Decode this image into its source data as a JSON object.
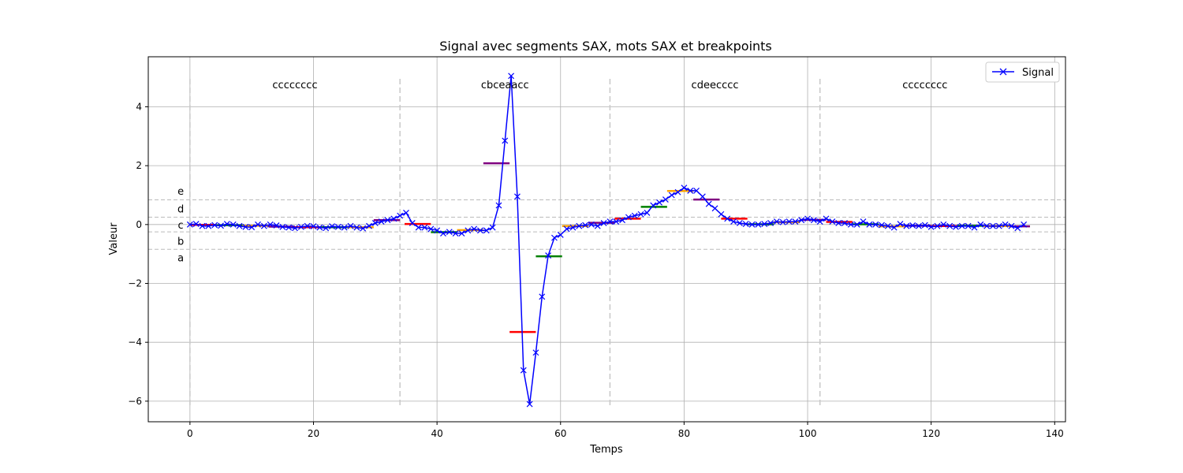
{
  "chart_data": {
    "type": "line",
    "title": "Signal avec segments SAX, mots SAX et breakpoints",
    "xlabel": "Temps",
    "ylabel": "Valeur",
    "xlim": [
      -6.75,
      141.75
    ],
    "ylim": [
      -6.7,
      5.7
    ],
    "xticks": [
      0,
      20,
      40,
      60,
      80,
      100,
      120,
      140
    ],
    "yticks": [
      -6,
      -4,
      -2,
      0,
      2,
      4
    ],
    "grid": true,
    "legend": {
      "position": "top-right",
      "entries": [
        {
          "name": "Signal",
          "color": "#0000ff",
          "marker": "x"
        }
      ]
    },
    "series": [
      {
        "name": "Signal",
        "color": "#0000ff",
        "x": [
          0,
          1,
          2,
          3,
          4,
          5,
          6,
          7,
          8,
          9,
          10,
          11,
          12,
          13,
          14,
          15,
          16,
          17,
          18,
          19,
          20,
          21,
          22,
          23,
          24,
          25,
          26,
          27,
          28,
          29,
          30,
          31,
          32,
          33,
          34,
          35,
          36,
          37,
          38,
          39,
          40,
          41,
          42,
          43,
          44,
          45,
          46,
          47,
          48,
          49,
          50,
          51,
          52,
          53,
          54,
          55,
          56,
          57,
          58,
          59,
          60,
          61,
          62,
          63,
          64,
          65,
          66,
          67,
          68,
          69,
          70,
          71,
          72,
          73,
          74,
          75,
          76,
          77,
          78,
          79,
          80,
          81,
          82,
          83,
          84,
          85,
          86,
          87,
          88,
          89,
          90,
          91,
          92,
          93,
          94,
          95,
          96,
          97,
          98,
          99,
          100,
          101,
          102,
          103,
          104,
          105,
          106,
          107,
          108,
          109,
          110,
          111,
          112,
          113,
          114,
          115,
          116,
          117,
          118,
          119,
          120,
          121,
          122,
          123,
          124,
          125,
          126,
          127,
          128,
          129,
          130,
          131,
          132,
          133,
          134,
          135
        ],
        "y": [
          0.0,
          0.02,
          -0.05,
          -0.05,
          -0.02,
          -0.04,
          0.02,
          0.0,
          -0.05,
          -0.08,
          -0.09,
          0.0,
          -0.05,
          0.0,
          -0.03,
          -0.08,
          -0.1,
          -0.12,
          -0.08,
          -0.05,
          -0.06,
          -0.1,
          -0.12,
          -0.06,
          -0.08,
          -0.1,
          -0.05,
          -0.1,
          -0.13,
          -0.05,
          0.05,
          0.1,
          0.15,
          0.2,
          0.3,
          0.4,
          0.05,
          -0.1,
          -0.1,
          -0.15,
          -0.2,
          -0.3,
          -0.25,
          -0.3,
          -0.3,
          -0.2,
          -0.15,
          -0.2,
          -0.2,
          -0.1,
          0.65,
          2.85,
          5.05,
          0.95,
          -4.95,
          -6.1,
          -4.35,
          -2.45,
          -1.05,
          -0.45,
          -0.35,
          -0.15,
          -0.1,
          -0.05,
          -0.02,
          0.0,
          -0.05,
          0.05,
          0.1,
          0.1,
          0.15,
          0.25,
          0.3,
          0.35,
          0.4,
          0.65,
          0.75,
          0.85,
          1.0,
          1.1,
          1.25,
          1.15,
          1.15,
          0.95,
          0.7,
          0.55,
          0.35,
          0.2,
          0.1,
          0.05,
          0.02,
          0.0,
          0.0,
          0.02,
          0.05,
          0.1,
          0.08,
          0.1,
          0.1,
          0.15,
          0.2,
          0.15,
          0.1,
          0.2,
          0.1,
          0.05,
          0.05,
          0.0,
          0.0,
          0.1,
          0.0,
          0.0,
          -0.02,
          -0.05,
          -0.1,
          0.02,
          -0.05,
          -0.03,
          -0.05,
          -0.02,
          -0.08,
          -0.05,
          0.0,
          -0.05,
          -0.08,
          -0.05,
          -0.05,
          -0.1,
          0.0,
          -0.05,
          -0.05,
          -0.05,
          0.0,
          -0.05,
          -0.12,
          0.0
        ]
      }
    ],
    "sax_segments": [
      {
        "x0": 0,
        "x1": 4.25,
        "y": -0.01,
        "color": "#ff0000"
      },
      {
        "x0": 4.25,
        "x1": 8.5,
        "y": -0.02,
        "color": "#008000"
      },
      {
        "x0": 8.5,
        "x1": 12.75,
        "y": -0.04,
        "color": "#ffa500"
      },
      {
        "x0": 12.75,
        "x1": 17,
        "y": -0.07,
        "color": "#800080"
      },
      {
        "x0": 17,
        "x1": 21.25,
        "y": -0.09,
        "color": "#ff0000"
      },
      {
        "x0": 21.25,
        "x1": 25.5,
        "y": -0.09,
        "color": "#008000"
      },
      {
        "x0": 25.5,
        "x1": 29.75,
        "y": -0.09,
        "color": "#ffa500"
      },
      {
        "x0": 29.75,
        "x1": 34,
        "y": 0.15,
        "color": "#800080"
      },
      {
        "x0": 34.75,
        "x1": 39,
        "y": 0.02,
        "color": "#ff0000"
      },
      {
        "x0": 39,
        "x1": 43.25,
        "y": -0.26,
        "color": "#008000"
      },
      {
        "x0": 43.25,
        "x1": 47.5,
        "y": -0.19,
        "color": "#ffa500"
      },
      {
        "x0": 47.5,
        "x1": 51.75,
        "y": 2.08,
        "color": "#800080"
      },
      {
        "x0": 51.75,
        "x1": 56,
        "y": -3.65,
        "color": "#ff0000"
      },
      {
        "x0": 56,
        "x1": 60.25,
        "y": -1.08,
        "color": "#008000"
      },
      {
        "x0": 60.25,
        "x1": 64.5,
        "y": -0.05,
        "color": "#ffa500"
      },
      {
        "x0": 64.5,
        "x1": 68.75,
        "y": 0.06,
        "color": "#800080"
      },
      {
        "x0": 68.75,
        "x1": 73,
        "y": 0.2,
        "color": "#ff0000"
      },
      {
        "x0": 73,
        "x1": 77.25,
        "y": 0.6,
        "color": "#008000"
      },
      {
        "x0": 77.25,
        "x1": 81.5,
        "y": 1.14,
        "color": "#ffa500"
      },
      {
        "x0": 81.5,
        "x1": 85.75,
        "y": 0.85,
        "color": "#800080"
      },
      {
        "x0": 86,
        "x1": 90.25,
        "y": 0.2,
        "color": "#ff0000"
      },
      {
        "x0": 90.25,
        "x1": 94.5,
        "y": 0.01,
        "color": "#008000"
      },
      {
        "x0": 94.5,
        "x1": 98.75,
        "y": 0.08,
        "color": "#ffa500"
      },
      {
        "x0": 98.75,
        "x1": 103,
        "y": 0.16,
        "color": "#800080"
      },
      {
        "x0": 103,
        "x1": 107.25,
        "y": 0.09,
        "color": "#ff0000"
      },
      {
        "x0": 107.25,
        "x1": 111.5,
        "y": 0.01,
        "color": "#008000"
      },
      {
        "x0": 111.5,
        "x1": 115.75,
        "y": -0.06,
        "color": "#ffa500"
      },
      {
        "x0": 115.75,
        "x1": 120,
        "y": -0.04,
        "color": "#800080"
      },
      {
        "x0": 120,
        "x1": 124.25,
        "y": -0.05,
        "color": "#ff0000"
      },
      {
        "x0": 124.25,
        "x1": 128.5,
        "y": -0.04,
        "color": "#008000"
      },
      {
        "x0": 128.5,
        "x1": 132.75,
        "y": -0.05,
        "color": "#ffa500"
      },
      {
        "x0": 132.75,
        "x1": 136,
        "y": -0.06,
        "color": "#800080"
      }
    ],
    "sax_words": [
      {
        "text": "cccccccc",
        "x": 17
      },
      {
        "text": "cbceaacc",
        "x": 51
      },
      {
        "text": "cdeecccc",
        "x": 85
      },
      {
        "text": "cccccccc",
        "x": 119
      }
    ],
    "window_boundaries": [
      0,
      34,
      68,
      102
    ],
    "window_ymax": 4.95,
    "window_ymin": -6.15,
    "breakpoints": [
      -0.84,
      -0.25,
      0.25,
      0.84
    ],
    "breakpoint_labels": [
      {
        "text": "a",
        "y": -1.12
      },
      {
        "text": "b",
        "y": -0.55
      },
      {
        "text": "c",
        "y": 0.0
      },
      {
        "text": "d",
        "y": 0.55
      },
      {
        "text": "e",
        "y": 1.15
      }
    ],
    "breakpoint_label_x": -1.5
  }
}
